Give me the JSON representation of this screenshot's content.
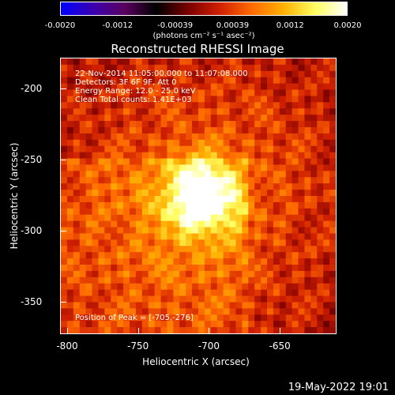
{
  "colorbar": {
    "ticks": [
      "-0.0020",
      "-0.0012",
      "-0.00039",
      "0.00039",
      "0.0012",
      "0.0020"
    ],
    "unit_label": "(photons cm⁻² s⁻¹ asec⁻²)",
    "colors": [
      "#0000ff",
      "#3b00b0",
      "#5a0060",
      "#000000",
      "#7a0000",
      "#d02000",
      "#ff6a00",
      "#ffb000",
      "#ffff60",
      "#ffffff"
    ]
  },
  "info": {
    "time": "22-Nov-2014 11:05:00.000 to 11:07:08.000",
    "detectors": "Detectors: 3F 6F 9F, Att 0",
    "energy": "Energy Range: 12.0 - 25.0 keV",
    "clean": "Clean     Total counts: 1.41E+03",
    "peak": "Position of Peak = [-705,-276]"
  },
  "footer": "19-May-2022 19:01",
  "chart_data": {
    "type": "heatmap",
    "title": "Reconstructed RHESSI Image",
    "xlabel": "Heliocentric X (arcsec)",
    "ylabel": "Heliocentric Y (arcsec)",
    "xlim": [
      -805,
      -610
    ],
    "ylim": [
      -373,
      -178
    ],
    "xticks": [
      "-800",
      "-750",
      "-700",
      "-650"
    ],
    "yticks": [
      "-200",
      "-250",
      "-300",
      "-350"
    ],
    "clim": [
      -0.002,
      0.002
    ],
    "peak": [
      -705,
      -276
    ]
  }
}
